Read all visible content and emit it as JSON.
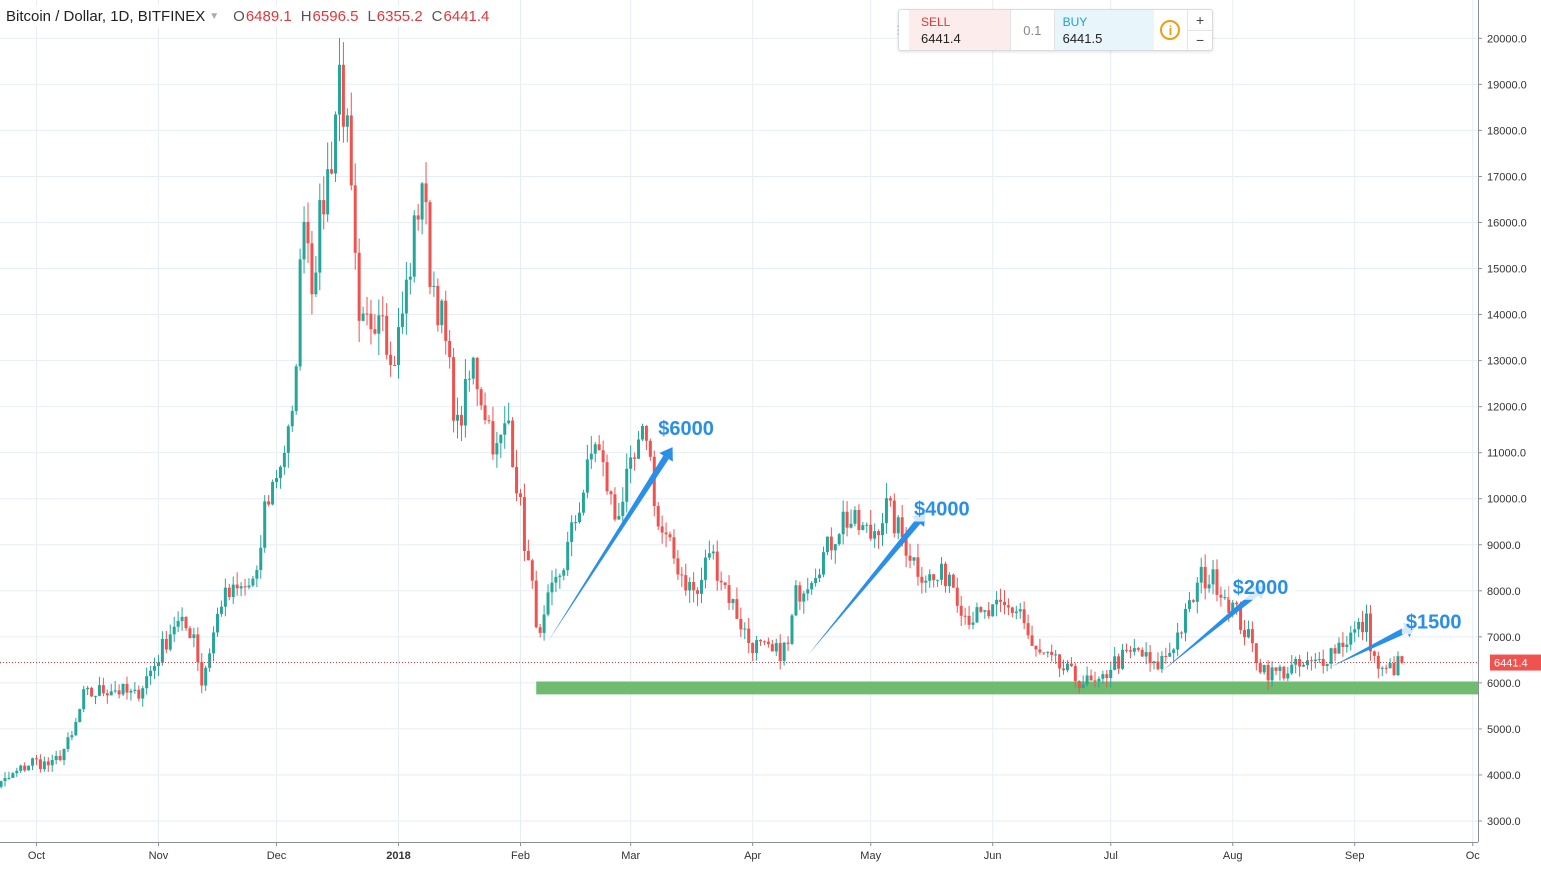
{
  "header": {
    "symbol": "Bitcoin / Dollar, 1D, BITFINEX",
    "caret": "▼",
    "open_key": "O",
    "open_val": "6489.1",
    "high_key": "H",
    "high_val": "6596.5",
    "low_key": "L",
    "low_val": "6355.2",
    "close_key": "C",
    "close_val": "6441.4"
  },
  "trade_panel": {
    "grip": "⋮⋮",
    "sell_label": "SELL",
    "sell_value": "6441.4",
    "quantity": "0.1",
    "buy_label": "BUY",
    "buy_value": "6441.5",
    "info_icon": "i",
    "plus": "+",
    "minus": "−"
  },
  "colors": {
    "up": "#26a69a",
    "down": "#ef5350",
    "arrow": "#2a8fe8",
    "support": "#6fbb6f",
    "grid": "#e6eef5"
  },
  "chart_data": {
    "type": "candlestick",
    "ylim": [
      2700,
      20700
    ],
    "y_ticks": [
      3000,
      4000,
      5000,
      6000,
      7000,
      8000,
      9000,
      10000,
      11000,
      12000,
      13000,
      14000,
      15000,
      16000,
      17000,
      18000,
      19000,
      20000
    ],
    "y_tick_labels": [
      "3000.0",
      "4000.0",
      "5000.0",
      "6000.0",
      "7000.0",
      "8000.0",
      "9000.0",
      "10000.0",
      "11000.0",
      "12000.0",
      "13000.0",
      "14000.0",
      "15000.0",
      "16000.0",
      "17000.0",
      "18000.0",
      "19000.0",
      "20000.0"
    ],
    "x_ticks": [
      {
        "label": "Oct",
        "date": "2017-10-01",
        "bold": false
      },
      {
        "label": "Nov",
        "date": "2017-11-01",
        "bold": false
      },
      {
        "label": "Dec",
        "date": "2017-12-01",
        "bold": false
      },
      {
        "label": "2018",
        "date": "2018-01-01",
        "bold": true
      },
      {
        "label": "Feb",
        "date": "2018-02-01",
        "bold": false
      },
      {
        "label": "Mar",
        "date": "2018-03-01",
        "bold": false
      },
      {
        "label": "Apr",
        "date": "2018-04-01",
        "bold": false
      },
      {
        "label": "May",
        "date": "2018-05-01",
        "bold": false
      },
      {
        "label": "Jun",
        "date": "2018-06-01",
        "bold": false
      },
      {
        "label": "Jul",
        "date": "2018-07-01",
        "bold": false
      },
      {
        "label": "Aug",
        "date": "2018-08-01",
        "bold": false
      },
      {
        "label": "Sep",
        "date": "2018-09-01",
        "bold": false
      },
      {
        "label": "Oc",
        "date": "2018-10-01",
        "bold": false
      }
    ],
    "price_path": [
      [
        "2017-09-15",
        3700
      ],
      [
        "2017-09-22",
        3800
      ],
      [
        "2017-09-30",
        4300
      ],
      [
        "2017-10-05",
        4200
      ],
      [
        "2017-10-10",
        4800
      ],
      [
        "2017-10-13",
        5700
      ],
      [
        "2017-10-20",
        5900
      ],
      [
        "2017-10-26",
        5700
      ],
      [
        "2017-10-31",
        6400
      ],
      [
        "2017-11-05",
        7300
      ],
      [
        "2017-11-10",
        7100
      ],
      [
        "2017-11-12",
        6000
      ],
      [
        "2017-11-17",
        7800
      ],
      [
        "2017-11-26",
        8200
      ],
      [
        "2017-11-28",
        9800
      ],
      [
        "2017-11-30",
        10300
      ],
      [
        "2017-12-05",
        11600
      ],
      [
        "2017-12-08",
        16500
      ],
      [
        "2017-12-10",
        14800
      ],
      [
        "2017-12-13",
        16500
      ],
      [
        "2017-12-15",
        17500
      ],
      [
        "2017-12-17",
        19300
      ],
      [
        "2017-12-19",
        17800
      ],
      [
        "2017-12-22",
        13500
      ],
      [
        "2017-12-25",
        13900
      ],
      [
        "2017-12-28",
        14400
      ],
      [
        "2017-12-30",
        12800
      ],
      [
        "2018-01-01",
        13500
      ],
      [
        "2018-01-04",
        15100
      ],
      [
        "2018-01-07",
        17000
      ],
      [
        "2018-01-09",
        15000
      ],
      [
        "2018-01-12",
        13900
      ],
      [
        "2018-01-16",
        11500
      ],
      [
        "2018-01-20",
        12900
      ],
      [
        "2018-01-26",
        11000
      ],
      [
        "2018-01-29",
        11700
      ],
      [
        "2018-02-02",
        9100
      ],
      [
        "2018-02-06",
        6900
      ],
      [
        "2018-02-08",
        7700
      ],
      [
        "2018-02-12",
        8600
      ],
      [
        "2018-02-17",
        10200
      ],
      [
        "2018-02-20",
        11300
      ],
      [
        "2018-02-25",
        9600
      ],
      [
        "2018-03-03",
        11000
      ],
      [
        "2018-03-05",
        11500
      ],
      [
        "2018-03-08",
        9400
      ],
      [
        "2018-03-15",
        8200
      ],
      [
        "2018-03-18",
        7900
      ],
      [
        "2018-03-21",
        8900
      ],
      [
        "2018-03-26",
        7900
      ],
      [
        "2018-03-31",
        6900
      ],
      [
        "2018-04-06",
        6600
      ],
      [
        "2018-04-10",
        6800
      ],
      [
        "2018-04-12",
        7900
      ],
      [
        "2018-04-20",
        8900
      ],
      [
        "2018-04-24",
        9600
      ],
      [
        "2018-05-01",
        9200
      ],
      [
        "2018-05-05",
        9800
      ],
      [
        "2018-05-10",
        9000
      ],
      [
        "2018-05-13",
        8500
      ],
      [
        "2018-05-17",
        8200
      ],
      [
        "2018-05-21",
        8400
      ],
      [
        "2018-05-25",
        7500
      ],
      [
        "2018-05-29",
        7400
      ],
      [
        "2018-06-03",
        7600
      ],
      [
        "2018-06-08",
        7600
      ],
      [
        "2018-06-11",
        6700
      ],
      [
        "2018-06-17",
        6400
      ],
      [
        "2018-06-22",
        6100
      ],
      [
        "2018-06-28",
        5900
      ],
      [
        "2018-07-01",
        6400
      ],
      [
        "2018-07-08",
        6700
      ],
      [
        "2018-07-12",
        6300
      ],
      [
        "2018-07-16",
        6700
      ],
      [
        "2018-07-20",
        7400
      ],
      [
        "2018-07-24",
        8300
      ],
      [
        "2018-07-28",
        8200
      ],
      [
        "2018-08-02",
        7500
      ],
      [
        "2018-08-08",
        6400
      ],
      [
        "2018-08-11",
        6200
      ],
      [
        "2018-08-16",
        6300
      ],
      [
        "2018-08-22",
        6400
      ],
      [
        "2018-08-26",
        6700
      ],
      [
        "2018-09-01",
        7100
      ],
      [
        "2018-09-04",
        7300
      ],
      [
        "2018-09-06",
        6500
      ],
      [
        "2018-09-08",
        6200
      ],
      [
        "2018-09-13",
        6441
      ]
    ],
    "current_price": 6441.4,
    "current_price_label": "6441.4",
    "support_zone": {
      "from": "2018-02-05",
      "to": "2018-10-18",
      "low": 5750,
      "high": 6030
    },
    "annotations": [
      {
        "label": "$6000",
        "from": [
          "2018-02-08",
          6900
        ],
        "to": [
          "2018-03-10",
          10900
        ],
        "text_at": [
          "2018-03-08",
          11450
        ]
      },
      {
        "label": "$4000",
        "from": [
          "2018-04-15",
          6600
        ],
        "to": [
          "2018-05-13",
          9500
        ],
        "text_at": [
          "2018-05-12",
          9700
        ]
      },
      {
        "label": "$2000",
        "from": [
          "2018-07-14",
          6250
        ],
        "to": [
          "2018-08-07",
          7950
        ],
        "text_at": [
          "2018-08-01",
          8000
        ]
      },
      {
        "label": "$1500",
        "from": [
          "2018-08-26",
          6350
        ],
        "to": [
          "2018-09-14",
          7150
        ],
        "text_at": [
          "2018-09-14",
          7250
        ]
      }
    ]
  }
}
